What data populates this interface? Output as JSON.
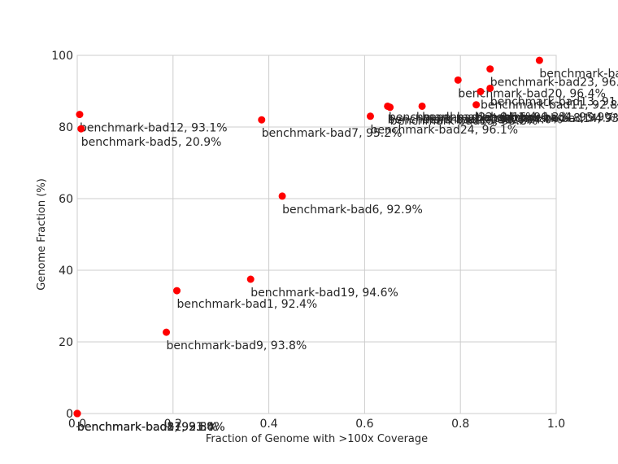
{
  "chart_data": {
    "type": "scatter",
    "xlabel": "Fraction of Genome with >100x Coverage",
    "ylabel": "Genome Fraction (%)",
    "xlim": [
      0,
      1
    ],
    "ylim": [
      0,
      100
    ],
    "xticks": [
      0.0,
      0.2,
      0.4,
      0.6,
      0.8,
      1.0
    ],
    "xtick_labels": [
      "0.0",
      "0.2",
      "0.4",
      "0.6",
      "0.8",
      "1.0"
    ],
    "yticks": [
      0,
      20,
      40,
      60,
      80,
      100
    ],
    "ytick_labels": [
      "0",
      "20",
      "40",
      "60",
      "80",
      "100"
    ],
    "grid": true,
    "marker_color": "#ff0000",
    "points": [
      {
        "x": 0.0,
        "y": 0.0,
        "label": "benchmark-bad3, 93.5%"
      },
      {
        "x": 0.0,
        "y": 0.0,
        "label": "benchmark-bad8, 92.8%"
      },
      {
        "x": 0.0,
        "y": 0.0,
        "label": "benchmark-bad17, 91.4%"
      },
      {
        "x": 0.0,
        "y": 0.0,
        "label": "benchmark-bad21, 93.0%"
      },
      {
        "x": 0.005,
        "y": 83.5,
        "label": "benchmark-bad12, 93.1%"
      },
      {
        "x": 0.008,
        "y": 79.5,
        "label": "benchmark-bad5, 20.9%"
      },
      {
        "x": 0.186,
        "y": 22.7,
        "label": "benchmark-bad9, 93.8%"
      },
      {
        "x": 0.208,
        "y": 34.3,
        "label": "benchmark-bad1, 92.4%"
      },
      {
        "x": 0.362,
        "y": 37.5,
        "label": "benchmark-bad19, 94.6%"
      },
      {
        "x": 0.385,
        "y": 82.0,
        "label": "benchmark-bad7, 95.2%"
      },
      {
        "x": 0.428,
        "y": 60.7,
        "label": "benchmark-bad6, 92.9%"
      },
      {
        "x": 0.612,
        "y": 83.0,
        "label": "benchmark-bad24, 96.1%"
      },
      {
        "x": 0.648,
        "y": 85.8,
        "label": "benchmark-bad10, 93.6%"
      },
      {
        "x": 0.653,
        "y": 85.5,
        "label": "benchmark-bad15, 95.8%"
      },
      {
        "x": 0.72,
        "y": 85.8,
        "label": "benchmark-bad2, 94.0%"
      },
      {
        "x": 0.795,
        "y": 93.1,
        "label": "benchmark-bad20, 96.4%"
      },
      {
        "x": 0.833,
        "y": 86.2,
        "label": "benchmark-bad18, 94.7%"
      },
      {
        "x": 0.842,
        "y": 89.9,
        "label": "benchmark-bad11, 92.8%"
      },
      {
        "x": 0.862,
        "y": 96.2,
        "label": "benchmark-bad23, 96."
      },
      {
        "x": 0.862,
        "y": 90.8,
        "label": "benchmark-bad13, 91.4"
      },
      {
        "x": 0.965,
        "y": 98.6,
        "label": "benchmark-ba"
      }
    ],
    "extra_labels": [
      {
        "x": 0.868,
        "y": 82.5,
        "label": "benchmark-bad14, 93.8%"
      },
      {
        "x": 0.72,
        "y": 82.8,
        "label": "benchmark-bad16, 96.3%"
      },
      {
        "x": 0.65,
        "y": 82.8,
        "label": "benchmark-bad22, 94.1%"
      },
      {
        "x": 0.83,
        "y": 82.8,
        "label": "benchmark-bad4, 95.9%"
      }
    ]
  }
}
